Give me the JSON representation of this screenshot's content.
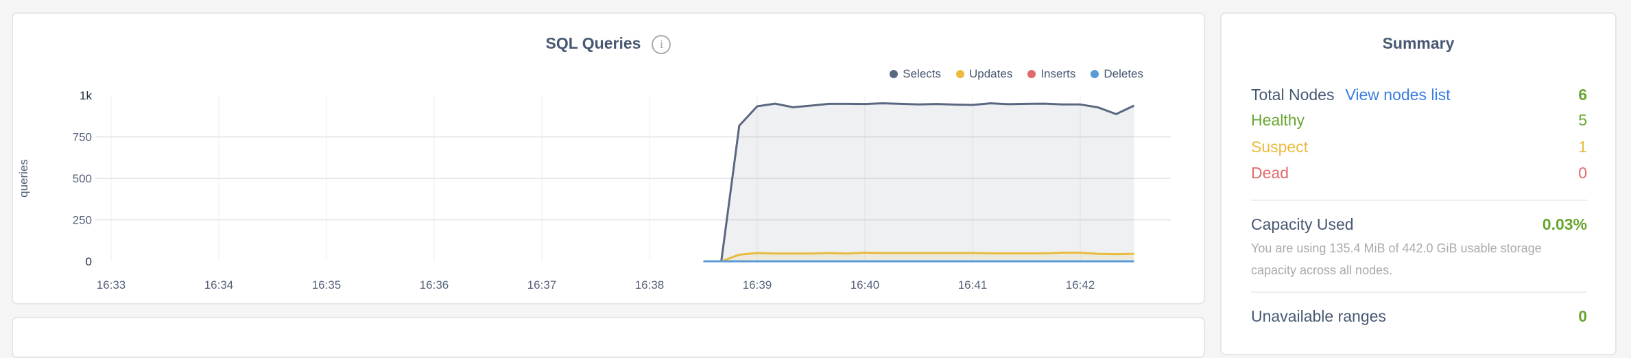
{
  "chart_card": {
    "title": "SQL Queries",
    "info_icon": "i"
  },
  "chart_data": {
    "type": "area",
    "title": "SQL Queries",
    "ylabel": "queries",
    "xlabel": "",
    "ylim": [
      0,
      1000
    ],
    "xlim": [
      "16:32:50",
      "16:43:10"
    ],
    "y_ticks": [
      "0",
      "250",
      "500",
      "750",
      "1k"
    ],
    "y_tick_values": [
      0,
      250,
      500,
      750,
      1000
    ],
    "x_ticks": [
      "16:33",
      "16:34",
      "16:35",
      "16:36",
      "16:37",
      "16:38",
      "16:39",
      "16:40",
      "16:41",
      "16:42"
    ],
    "grid": true,
    "legend_position": "top-right",
    "x": [
      "16:38:30",
      "16:38:40",
      "16:38:50",
      "16:39:00",
      "16:39:10",
      "16:39:20",
      "16:39:30",
      "16:39:40",
      "16:39:50",
      "16:40:00",
      "16:40:10",
      "16:40:20",
      "16:40:30",
      "16:40:40",
      "16:40:50",
      "16:41:00",
      "16:41:10",
      "16:41:20",
      "16:41:30",
      "16:41:40",
      "16:41:50",
      "16:42:00",
      "16:42:10",
      "16:42:20",
      "16:42:30"
    ],
    "series": [
      {
        "name": "Selects",
        "color": "#5a6780",
        "values": [
          0,
          0,
          817,
          934,
          950,
          928,
          938,
          949,
          949,
          948,
          952,
          949,
          945,
          948,
          944,
          942,
          952,
          947,
          949,
          950,
          945,
          945,
          927,
          887,
          938
        ]
      },
      {
        "name": "Updates",
        "color": "#e9bb3e",
        "values": [
          0,
          0,
          40,
          50,
          47,
          47,
          47,
          50,
          47,
          52,
          50,
          50,
          50,
          50,
          50,
          50,
          48,
          48,
          48,
          48,
          52,
          52,
          45,
          43,
          45
        ]
      },
      {
        "name": "Inserts",
        "color": "#e16a6a",
        "values": [
          0,
          0,
          0,
          0,
          0,
          0,
          0,
          0,
          0,
          0,
          0,
          0,
          0,
          0,
          0,
          0,
          0,
          0,
          0,
          0,
          0,
          0,
          0,
          0,
          0
        ]
      },
      {
        "name": "Deletes",
        "color": "#5b9bd5",
        "values": [
          0,
          0,
          0,
          0,
          0,
          0,
          0,
          0,
          0,
          0,
          0,
          0,
          0,
          0,
          0,
          0,
          0,
          0,
          0,
          0,
          0,
          0,
          0,
          0,
          0
        ]
      }
    ]
  },
  "summary": {
    "title": "Summary",
    "total_nodes_label": "Total Nodes",
    "view_nodes_link": "View nodes list",
    "total_nodes_value": "6",
    "healthy_label": "Healthy",
    "healthy_value": "5",
    "suspect_label": "Suspect",
    "suspect_value": "1",
    "dead_label": "Dead",
    "dead_value": "0",
    "capacity_label": "Capacity Used",
    "capacity_value": "0.03%",
    "capacity_note": "You are using 135.4 MiB of 442.0 GiB usable storage capacity across all nodes.",
    "unavailable_label": "Unavailable ranges",
    "unavailable_value": "0"
  },
  "colors": {
    "green": "#6aa632",
    "yellow": "#e9bb3e",
    "red": "#e16a6a",
    "link": "#3a7de1",
    "text": "#475872"
  }
}
